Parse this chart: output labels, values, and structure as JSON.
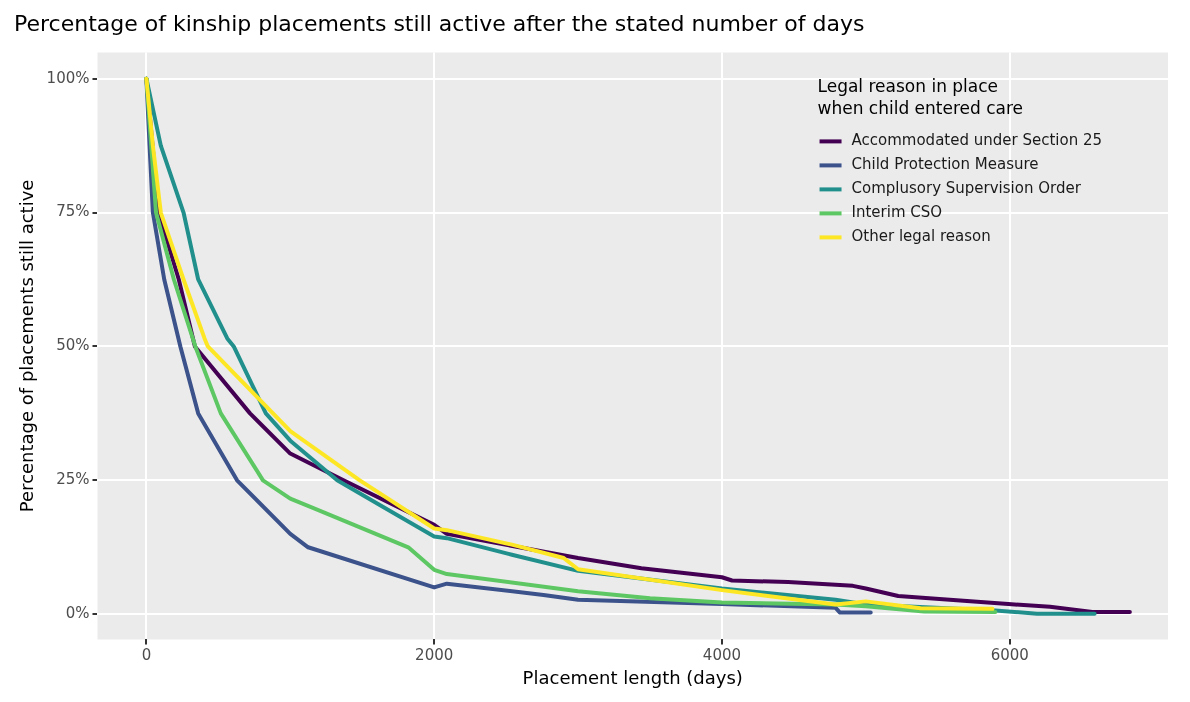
{
  "chart_data": {
    "type": "line",
    "title": "Percentage of kinship placements still active after the stated number of days",
    "xlabel": "Placement length (days)",
    "ylabel": "Percentage of placements still active",
    "legend_title": "Legal reason in place when child entered care",
    "legend": "top right",
    "grid": true,
    "marker": "none",
    "line_style": "solid",
    "xlim": [
      -340,
      7100
    ],
    "xticks": [
      0,
      2000,
      4000,
      6000
    ],
    "ylim": [
      -4.7,
      104.9
    ],
    "yticks": [
      {
        "value": 0,
        "label": "0%"
      },
      {
        "value": 25,
        "label": "25%"
      },
      {
        "value": 50,
        "label": "50%"
      },
      {
        "value": 75,
        "label": "75%"
      },
      {
        "value": 100,
        "label": "100%"
      }
    ],
    "series": [
      {
        "name": "Accommodated under Section 25",
        "color": "#440154",
        "x": [
          0,
          85,
          225,
          337,
          720,
          1000,
          1370,
          2000,
          2088,
          3000,
          3440,
          4000,
          4070,
          4460,
          4910,
          5000,
          5225,
          5990,
          6280,
          6575,
          6835
        ],
        "values": [
          100,
          75,
          62.5,
          50,
          37.5,
          30,
          25,
          16.7,
          15,
          10.5,
          8.6,
          6.9,
          6.3,
          6,
          5.3,
          4.8,
          3.4,
          1.9,
          1.4,
          0.4,
          0.4
        ]
      },
      {
        "name": "Child Protection Measure",
        "color": "#3b528b",
        "x": [
          0,
          22,
          45,
          124,
          236,
          360,
          630,
          1000,
          1124,
          2000,
          2088,
          2760,
          3000,
          4000,
          4790,
          4820,
          5034
        ],
        "values": [
          100,
          87.5,
          75,
          62.5,
          50,
          37.5,
          25,
          15,
          12.5,
          5,
          5.7,
          3.6,
          2.7,
          1.9,
          1.2,
          0.3,
          0.3
        ]
      },
      {
        "name": "Complusory Supervision Order",
        "color": "#21908c",
        "x": [
          0,
          100,
          258,
          360,
          562,
          607,
          830,
          1000,
          1326,
          2000,
          2088,
          2540,
          3000,
          4000,
          4790,
          5000,
          5900,
          6190,
          6590
        ],
        "values": [
          100,
          87.5,
          75,
          62.5,
          51.5,
          50,
          37.5,
          32.4,
          25,
          14.5,
          14.2,
          11.1,
          8.1,
          4.8,
          2.7,
          1.8,
          0.7,
          0.1,
          0.1
        ]
      },
      {
        "name": "Interim CSO",
        "color": "#5dc863",
        "x": [
          0,
          67,
          191,
          340,
          517,
          810,
          1000,
          1820,
          2000,
          2088,
          3000,
          3500,
          4000,
          4790,
          5000,
          5405,
          5900
        ],
        "values": [
          100,
          75,
          62.5,
          50,
          37.5,
          25,
          21.6,
          12.5,
          8.3,
          7.5,
          4.3,
          3,
          2.2,
          1.8,
          1.5,
          0.5,
          0.4
        ]
      },
      {
        "name": "Other legal reason",
        "color": "#fde725",
        "x": [
          0,
          45,
          100,
          258,
          404,
          427,
          1000,
          1483,
          2000,
          2088,
          2540,
          2900,
          3000,
          4000,
          4790,
          5000,
          5380,
          5880
        ],
        "values": [
          100,
          87.5,
          75,
          62.5,
          51.5,
          50,
          34.2,
          25,
          16,
          15.7,
          13,
          10.5,
          8.4,
          4.5,
          1.8,
          2.4,
          1.1,
          1.0
        ]
      }
    ]
  }
}
